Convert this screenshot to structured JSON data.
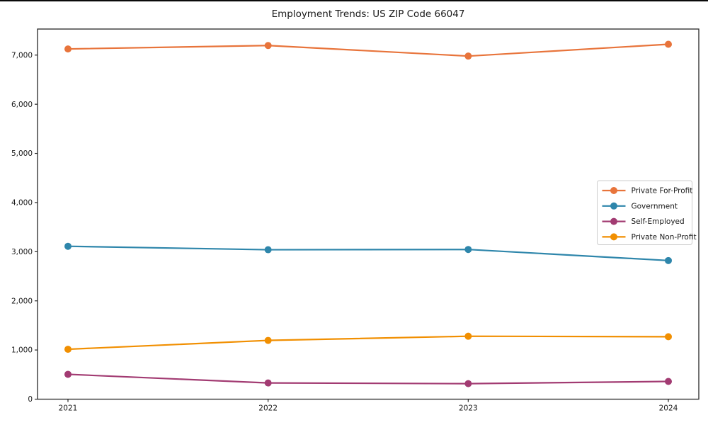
{
  "page": {
    "title": "Employment Trends: US ZIP Code 66047"
  },
  "chart_data": {
    "type": "line",
    "title": "Employment Trends: US ZIP Code 66047",
    "x": [
      2021,
      2022,
      2023,
      2024
    ],
    "x_tick_labels": [
      "2021",
      "2022",
      "2023",
      "2024"
    ],
    "series": [
      {
        "name": "Private For-Profit",
        "color": "#E8743B",
        "values": [
          7125,
          7195,
          6980,
          7220
        ]
      },
      {
        "name": "Government",
        "color": "#2E86AB",
        "values": [
          3110,
          3040,
          3045,
          2820
        ]
      },
      {
        "name": "Self-Employed",
        "color": "#A23B72",
        "values": [
          505,
          330,
          315,
          360
        ]
      },
      {
        "name": "Private Non-Profit",
        "color": "#F18F01",
        "values": [
          1015,
          1195,
          1280,
          1270
        ]
      }
    ],
    "ylim": [
      0,
      7530
    ],
    "yticks": {
      "values": [
        0,
        1000,
        2000,
        3000,
        4000,
        5000,
        6000,
        7000
      ],
      "labels": [
        "0",
        "1,000",
        "2,000",
        "3,000",
        "4,000",
        "5,000",
        "6,000",
        "7,000"
      ]
    },
    "grid": false,
    "legend_position": "center right",
    "marker": "o",
    "line_width": 2.2,
    "marker_radius": 5,
    "axis_color": "#262626",
    "text_color": "#1a1a1a",
    "legend_border_color": "#cccccc",
    "background": "#ffffff"
  }
}
